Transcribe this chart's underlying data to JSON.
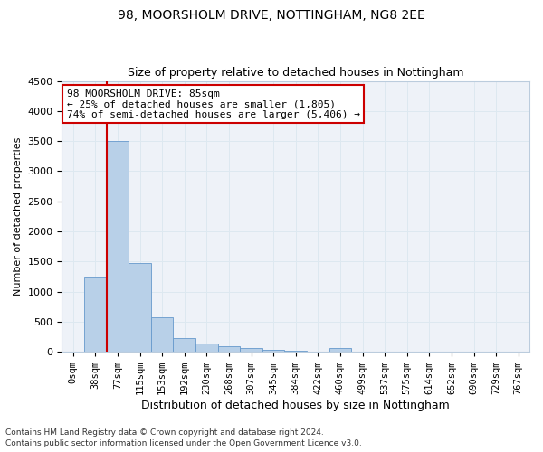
{
  "title1": "98, MOORSHOLM DRIVE, NOTTINGHAM, NG8 2EE",
  "title2": "Size of property relative to detached houses in Nottingham",
  "xlabel": "Distribution of detached houses by size in Nottingham",
  "ylabel": "Number of detached properties",
  "bar_labels": [
    "0sqm",
    "38sqm",
    "77sqm",
    "115sqm",
    "153sqm",
    "192sqm",
    "230sqm",
    "268sqm",
    "307sqm",
    "345sqm",
    "384sqm",
    "422sqm",
    "460sqm",
    "499sqm",
    "537sqm",
    "575sqm",
    "614sqm",
    "652sqm",
    "690sqm",
    "729sqm",
    "767sqm"
  ],
  "bar_values": [
    0,
    1250,
    3500,
    1475,
    575,
    230,
    140,
    90,
    65,
    35,
    15,
    10,
    60,
    0,
    0,
    0,
    0,
    0,
    0,
    0,
    0
  ],
  "bar_color": "#b8d0e8",
  "bar_edge_color": "#6699cc",
  "grid_color": "#dde8f0",
  "background_color": "#eef2f8",
  "vline_color": "#cc0000",
  "annotation_text": "98 MOORSHOLM DRIVE: 85sqm\n← 25% of detached houses are smaller (1,805)\n74% of semi-detached houses are larger (5,406) →",
  "annotation_box_color": "#ffffff",
  "annotation_border_color": "#cc0000",
  "ylim": [
    0,
    4500
  ],
  "yticks": [
    0,
    500,
    1000,
    1500,
    2000,
    2500,
    3000,
    3500,
    4000,
    4500
  ],
  "footnote1": "Contains HM Land Registry data © Crown copyright and database right 2024.",
  "footnote2": "Contains public sector information licensed under the Open Government Licence v3.0."
}
